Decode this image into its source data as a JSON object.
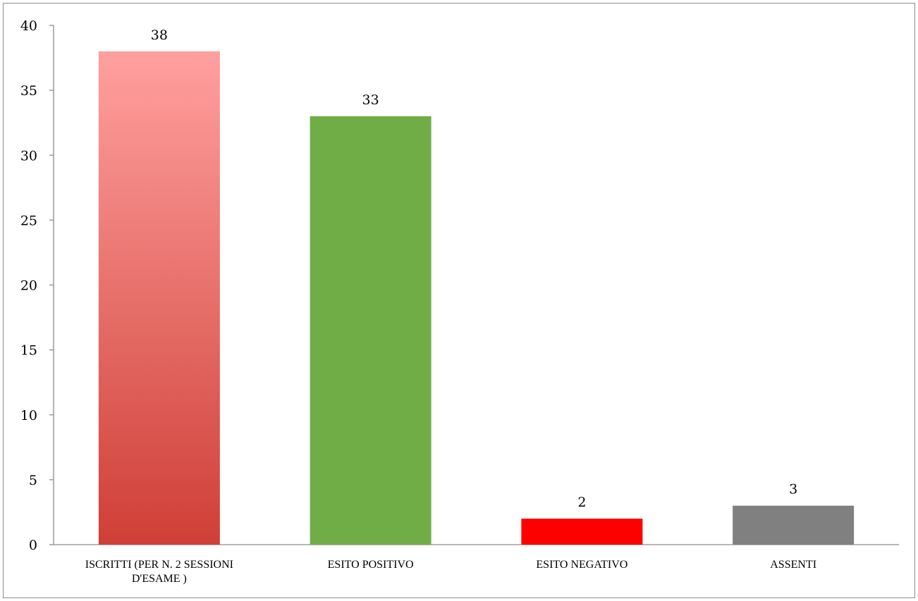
{
  "chart_data": {
    "type": "bar",
    "title": "",
    "xlabel": "",
    "ylabel": "",
    "categories": [
      [
        "ISCRITTI (PER N. 2 SESSIONI",
        "D'ESAME )"
      ],
      [
        "ESITO POSITIVO"
      ],
      [
        "ESITO NEGATIVO"
      ],
      [
        "ASSENTI"
      ]
    ],
    "values": [
      38,
      33,
      2,
      3
    ],
    "data_labels": [
      "38",
      "33",
      "2",
      "3"
    ],
    "ylim": [
      0,
      40
    ],
    "yticks": [
      0,
      5,
      10,
      15,
      20,
      25,
      30,
      35,
      40
    ],
    "grid": false,
    "legend": "none",
    "bar_colors": [
      {
        "gradient": [
          "#ffa09e",
          "#cf3f37"
        ]
      },
      {
        "solid": "#70ad47"
      },
      {
        "solid": "#ff0000"
      },
      {
        "solid": "#808080"
      }
    ],
    "axis_color": "#8c8c8c"
  }
}
